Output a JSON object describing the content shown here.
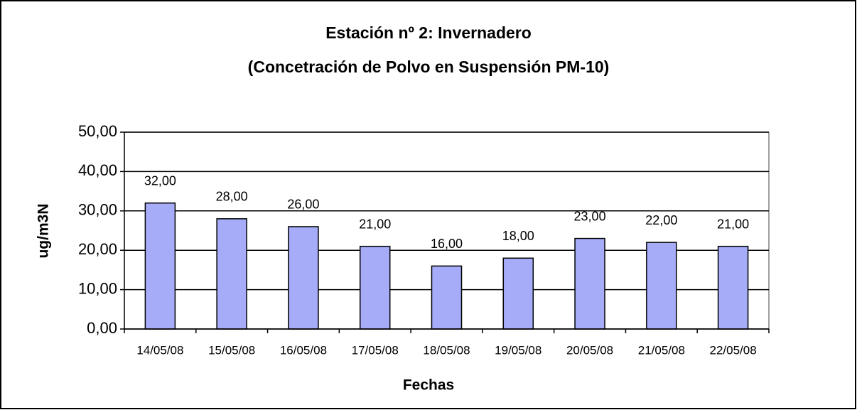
{
  "chart_data": {
    "type": "bar",
    "title": "Estación nº 2: Invernadero",
    "subtitle": "(Concetración de Polvo en Suspensión PM-10)",
    "xlabel": "Fechas",
    "ylabel": "ug/m3N",
    "categories": [
      "14/05/08",
      "15/05/08",
      "16/05/08",
      "17/05/08",
      "18/05/08",
      "19/05/08",
      "20/05/08",
      "21/05/08",
      "22/05/08"
    ],
    "values": [
      32,
      28,
      26,
      21,
      16,
      18,
      23,
      22,
      21
    ],
    "value_labels": [
      "32,00",
      "28,00",
      "26,00",
      "21,00",
      "16,00",
      "18,00",
      "23,00",
      "22,00",
      "21,00"
    ],
    "color": "#a6acf8",
    "ylim": [
      0,
      50
    ],
    "yticks": [
      {
        "value": 0,
        "label": "0,00"
      },
      {
        "value": 10,
        "label": "10,00"
      },
      {
        "value": 20,
        "label": "20,00"
      },
      {
        "value": 30,
        "label": "30,00"
      },
      {
        "value": 40,
        "label": "40,00"
      },
      {
        "value": 50,
        "label": "50,00"
      }
    ],
    "grid": true
  }
}
